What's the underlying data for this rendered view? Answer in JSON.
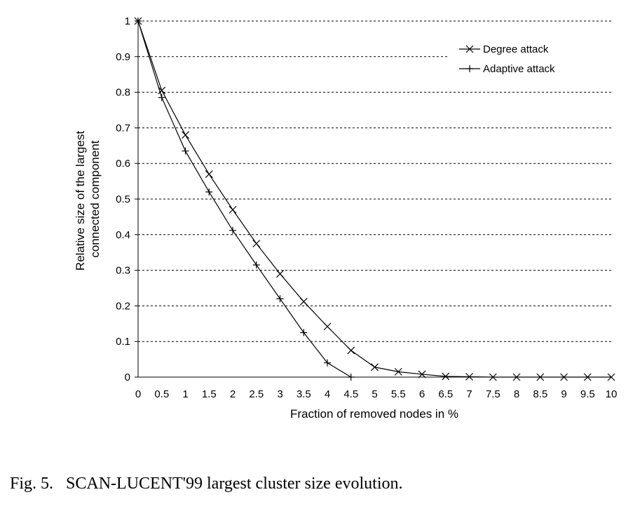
{
  "chart_data": {
    "type": "line",
    "xlabel": "Fraction of removed nodes in %",
    "ylabel_lines": [
      "Relative size of the largest",
      "connected component"
    ],
    "xlim": [
      0,
      10
    ],
    "ylim": [
      0,
      1
    ],
    "x_ticks": [
      "0",
      "0.5",
      "1",
      "1.5",
      "2",
      "2.5",
      "3",
      "3.5",
      "4",
      "4.5",
      "5",
      "5.5",
      "6",
      "6.5",
      "7",
      "7.5",
      "8",
      "8.5",
      "9",
      "9.5",
      "10"
    ],
    "y_ticks": [
      "0",
      "0.1",
      "0.2",
      "0.3",
      "0.4",
      "0.5",
      "0.6",
      "0.7",
      "0.8",
      "0.9",
      "1"
    ],
    "y_grid": true,
    "grid_style": "dashed",
    "legend_position": "top-right",
    "series": [
      {
        "name": "Degree attack",
        "marker": "x",
        "x": [
          0,
          0.5,
          1,
          1.5,
          2,
          2.5,
          3,
          3.5,
          4,
          4.5,
          5,
          5.5,
          6,
          6.5,
          7,
          7.5,
          8,
          8.5,
          9,
          9.5,
          10
        ],
        "values": [
          1.0,
          0.805,
          0.68,
          0.57,
          0.47,
          0.375,
          0.29,
          0.212,
          0.142,
          0.075,
          0.028,
          0.015,
          0.008,
          0.002,
          0.001,
          0,
          0,
          0,
          0,
          0,
          0
        ]
      },
      {
        "name": "Adaptive attack",
        "marker": "+",
        "x": [
          0,
          0.5,
          1,
          1.5,
          2,
          2.5,
          3,
          3.5,
          4,
          4.5
        ],
        "values": [
          1.0,
          0.785,
          0.635,
          0.52,
          0.412,
          0.315,
          0.22,
          0.125,
          0.04,
          0
        ]
      }
    ]
  },
  "caption": "Fig. 5.   SCAN-LUCENT'99 largest cluster size evolution."
}
